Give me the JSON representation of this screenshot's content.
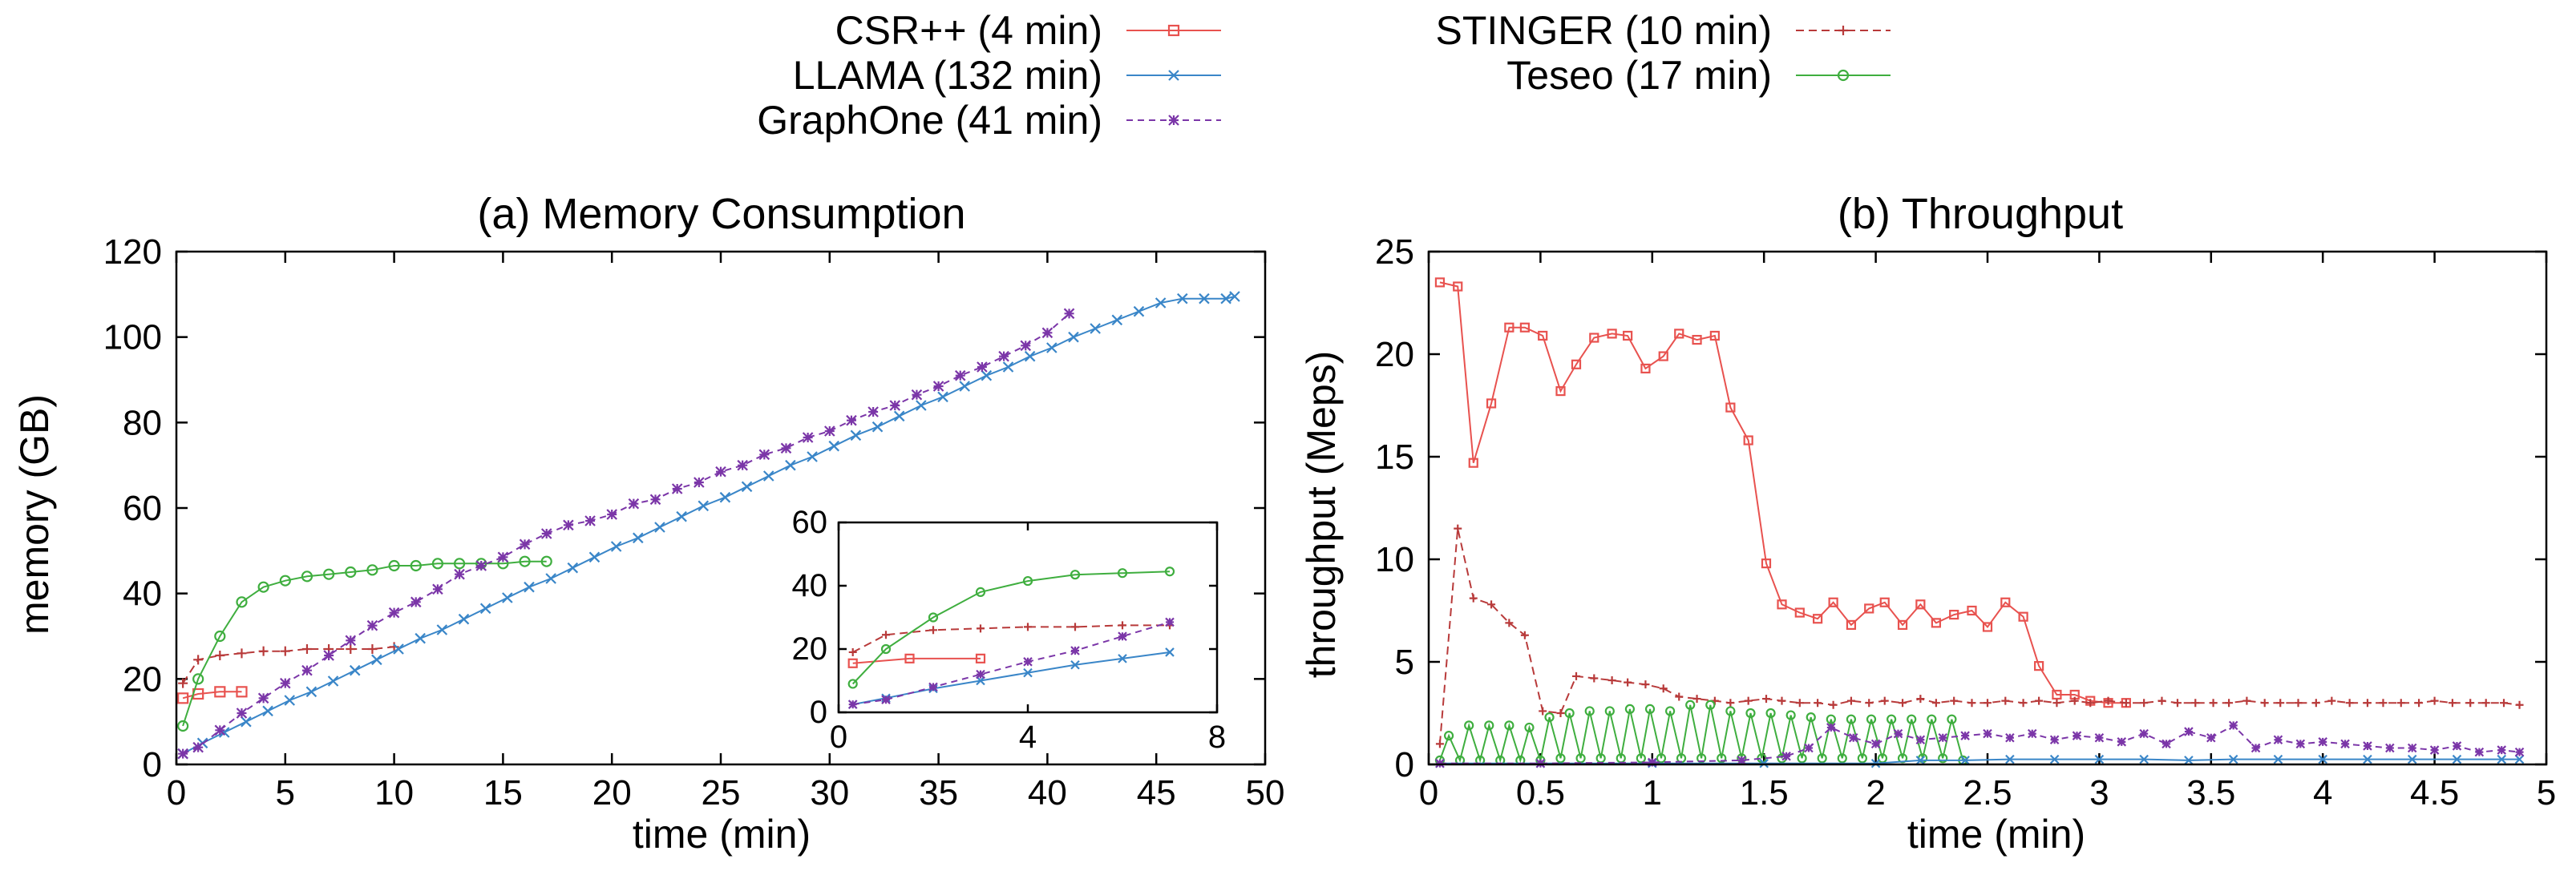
{
  "legend": [
    {
      "series": "csr",
      "label": "CSR++ (4 min)",
      "color": "#e8524f",
      "marker": "square",
      "dash": ""
    },
    {
      "series": "llama",
      "label": "LLAMA (132 min)",
      "color": "#3a86c8",
      "marker": "x",
      "dash": ""
    },
    {
      "series": "graphone",
      "label": "GraphOne (41 min)",
      "color": "#7b36a8",
      "marker": "star",
      "dash": "8,6"
    },
    {
      "series": "stinger",
      "label": "STINGER (10 min)",
      "color": "#b83a3a",
      "marker": "plus",
      "dash": "10,6"
    },
    {
      "series": "teseo",
      "label": "Teseo (17 min)",
      "color": "#3fae3f",
      "marker": "circle",
      "dash": ""
    }
  ],
  "chart_data": [
    {
      "id": "memory",
      "type": "line",
      "title": "(a) Memory Consumption",
      "xlabel": "time (min)",
      "ylabel": "memory (GB)",
      "xlim": [
        0,
        50
      ],
      "ylim": [
        0,
        120
      ],
      "xticks": [
        0,
        5,
        10,
        15,
        20,
        25,
        30,
        35,
        40,
        45,
        50
      ],
      "yticks": [
        0,
        20,
        40,
        60,
        80,
        100,
        120
      ],
      "series": [
        {
          "key": "csr",
          "x": [
            0.3,
            1.0,
            2.0,
            3.0
          ],
          "y": [
            15.5,
            16.5,
            17.0,
            17.0
          ]
        },
        {
          "key": "stinger",
          "x": [
            0.3,
            1.0,
            2.0,
            3.0,
            4.0,
            5.0,
            6.0,
            7.0,
            8.0,
            9.0,
            10.0
          ],
          "y": [
            19.0,
            24.5,
            25.5,
            26.0,
            26.5,
            26.5,
            27.0,
            27.0,
            27.0,
            27.0,
            27.5
          ]
        },
        {
          "key": "teseo",
          "x": [
            0.3,
            1.0,
            2.0,
            3.0,
            4.0,
            5.0,
            6.0,
            7.0,
            8.0,
            9.0,
            10.0,
            11.0,
            12.0,
            13.0,
            14.0,
            15.0,
            16.0,
            17.0
          ],
          "y": [
            9.0,
            20.0,
            30.0,
            38.0,
            41.5,
            43.0,
            44.0,
            44.5,
            45.0,
            45.5,
            46.5,
            46.5,
            47.0,
            47.0,
            47.0,
            47.0,
            47.5,
            47.5
          ]
        },
        {
          "key": "llama",
          "x": [
            0.3,
            1.2,
            2.2,
            3.2,
            4.2,
            5.2,
            6.2,
            7.2,
            8.2,
            9.2,
            10.2,
            11.2,
            12.2,
            13.2,
            14.2,
            15.2,
            16.2,
            17.2,
            18.2,
            19.2,
            20.2,
            21.2,
            22.2,
            23.2,
            24.2,
            25.2,
            26.2,
            27.2,
            28.2,
            29.2,
            30.2,
            31.2,
            32.2,
            33.2,
            34.2,
            35.2,
            36.2,
            37.2,
            38.2,
            39.2,
            40.2,
            41.2,
            42.2,
            43.2,
            44.2,
            45.2,
            46.2,
            47.2,
            48.2,
            48.6
          ],
          "y": [
            2.5,
            5.0,
            7.5,
            10.0,
            12.5,
            15.0,
            17.0,
            19.5,
            22.0,
            24.5,
            27.0,
            29.5,
            31.5,
            34.0,
            36.5,
            39.0,
            41.5,
            43.5,
            46.0,
            48.5,
            51.0,
            53.0,
            55.5,
            58.0,
            60.5,
            62.5,
            65.0,
            67.5,
            70.0,
            72.0,
            74.5,
            77.0,
            79.0,
            81.5,
            84.0,
            86.0,
            88.5,
            91.0,
            93.0,
            95.5,
            97.5,
            100.0,
            102.0,
            104.0,
            106.0,
            108.0,
            109.0,
            109.0,
            109.0,
            109.5
          ]
        },
        {
          "key": "graphone",
          "x": [
            0.3,
            1.0,
            2.0,
            3.0,
            4.0,
            5.0,
            6.0,
            7.0,
            8.0,
            9.0,
            10.0,
            11.0,
            12.0,
            13.0,
            14.0,
            15.0,
            16.0,
            17.0,
            18.0,
            19.0,
            20.0,
            21.0,
            22.0,
            23.0,
            24.0,
            25.0,
            26.0,
            27.0,
            28.0,
            29.0,
            30.0,
            31.0,
            32.0,
            33.0,
            34.0,
            35.0,
            36.0,
            37.0,
            38.0,
            39.0,
            40.0,
            41.0
          ],
          "y": [
            2.5,
            4.0,
            8.0,
            12.0,
            15.5,
            19.0,
            22.0,
            25.5,
            29.0,
            32.5,
            35.5,
            38.0,
            41.0,
            44.5,
            46.5,
            48.5,
            51.5,
            54.0,
            56.0,
            57.0,
            58.5,
            61.0,
            62.0,
            64.5,
            66.0,
            68.5,
            70.0,
            72.5,
            74.0,
            76.5,
            78.0,
            80.5,
            82.5,
            84.0,
            86.5,
            88.5,
            91.0,
            93.0,
            95.5,
            98.0,
            101.0,
            105.5
          ]
        }
      ]
    },
    {
      "id": "memory-inset",
      "type": "line",
      "xlim": [
        0,
        8
      ],
      "ylim": [
        0,
        60
      ],
      "xticks": [
        0,
        4,
        8
      ],
      "yticks": [
        0,
        20,
        40,
        60
      ],
      "series": [
        {
          "key": "csr",
          "x": [
            0.3,
            1.5,
            3.0
          ],
          "y": [
            15.5,
            17.0,
            17.0
          ]
        },
        {
          "key": "stinger",
          "x": [
            0.3,
            1.0,
            2.0,
            3.0,
            4.0,
            5.0,
            6.0,
            7.0
          ],
          "y": [
            19.0,
            24.5,
            26.0,
            26.5,
            27.0,
            27.0,
            27.5,
            27.5
          ]
        },
        {
          "key": "teseo",
          "x": [
            0.3,
            1.0,
            2.0,
            3.0,
            4.0,
            5.0,
            6.0,
            7.0
          ],
          "y": [
            9.0,
            20.0,
            30.0,
            38.0,
            41.5,
            43.5,
            44.0,
            44.5
          ]
        },
        {
          "key": "llama",
          "x": [
            0.3,
            1.0,
            2.0,
            3.0,
            4.0,
            5.0,
            6.0,
            7.0
          ],
          "y": [
            2.5,
            4.5,
            7.5,
            10.0,
            12.5,
            15.0,
            17.0,
            19.0
          ]
        },
        {
          "key": "graphone",
          "x": [
            0.3,
            1.0,
            2.0,
            3.0,
            4.0,
            5.0,
            6.0,
            7.0
          ],
          "y": [
            2.5,
            4.0,
            8.0,
            12.0,
            16.0,
            19.5,
            24.0,
            28.5
          ]
        }
      ]
    },
    {
      "id": "throughput",
      "type": "line",
      "title": "(b) Throughput",
      "xlabel": "time (min)",
      "ylabel": "throughput (Meps)",
      "xlim": [
        0,
        5
      ],
      "ylim": [
        0,
        25
      ],
      "xticks": [
        0,
        0.5,
        1,
        1.5,
        2,
        2.5,
        3,
        3.5,
        4,
        4.5,
        5
      ],
      "yticks": [
        0,
        5,
        10,
        15,
        20,
        25
      ],
      "series": [
        {
          "key": "csr",
          "x": [
            0.05,
            0.13,
            0.2,
            0.28,
            0.36,
            0.43,
            0.51,
            0.59,
            0.66,
            0.74,
            0.82,
            0.89,
            0.97,
            1.05,
            1.12,
            1.2,
            1.28,
            1.35,
            1.43,
            1.51,
            1.58,
            1.66,
            1.74,
            1.81,
            1.89,
            1.97,
            2.04,
            2.12,
            2.2,
            2.27,
            2.35,
            2.43,
            2.5,
            2.58,
            2.66,
            2.73,
            2.81,
            2.89,
            2.96,
            3.04,
            3.12
          ],
          "y": [
            23.5,
            23.3,
            14.7,
            17.6,
            21.3,
            21.3,
            20.9,
            18.2,
            19.5,
            20.8,
            21.0,
            20.9,
            19.3,
            19.9,
            21.0,
            20.7,
            20.9,
            17.4,
            15.8,
            9.8,
            7.8,
            7.4,
            7.1,
            7.9,
            6.8,
            7.6,
            7.9,
            6.8,
            7.8,
            6.9,
            7.3,
            7.5,
            6.7,
            7.9,
            7.2,
            4.8,
            3.4,
            3.4,
            3.1,
            3.0,
            3.0
          ]
        },
        {
          "key": "stinger",
          "x": [
            0.05,
            0.13,
            0.2,
            0.28,
            0.36,
            0.43,
            0.51,
            0.59,
            0.66,
            0.74,
            0.82,
            0.89,
            0.97,
            1.05,
            1.12,
            1.2,
            1.28,
            1.35,
            1.43,
            1.51,
            1.58,
            1.66,
            1.74,
            1.81,
            1.89,
            1.97,
            2.04,
            2.12,
            2.2,
            2.27,
            2.35,
            2.43,
            2.5,
            2.58,
            2.66,
            2.73,
            2.81,
            2.89,
            2.96,
            3.04,
            3.12,
            3.2,
            3.28,
            3.35,
            3.43,
            3.51,
            3.58,
            3.66,
            3.74,
            3.81,
            3.89,
            3.97,
            4.04,
            4.12,
            4.2,
            4.27,
            4.35,
            4.43,
            4.5,
            4.58,
            4.66,
            4.73,
            4.81,
            4.88
          ],
          "y": [
            1.0,
            11.5,
            8.1,
            7.8,
            6.9,
            6.3,
            2.6,
            2.5,
            4.3,
            4.2,
            4.1,
            4.0,
            3.9,
            3.7,
            3.3,
            3.2,
            3.1,
            3.0,
            3.1,
            3.2,
            3.1,
            3.0,
            3.0,
            2.9,
            3.1,
            3.0,
            3.1,
            3.0,
            3.2,
            3.0,
            3.1,
            3.0,
            3.0,
            3.1,
            3.0,
            3.1,
            3.0,
            3.1,
            3.0,
            3.1,
            3.0,
            3.0,
            3.1,
            3.0,
            3.0,
            3.0,
            3.0,
            3.1,
            3.0,
            3.0,
            3.0,
            3.0,
            3.1,
            3.0,
            3.0,
            3.0,
            3.0,
            3.0,
            3.1,
            3.0,
            3.0,
            3.0,
            3.0,
            2.9
          ]
        },
        {
          "key": "teseo",
          "x": [
            0.05,
            0.09,
            0.14,
            0.18,
            0.23,
            0.27,
            0.32,
            0.36,
            0.41,
            0.45,
            0.5,
            0.54,
            0.59,
            0.63,
            0.68,
            0.72,
            0.77,
            0.81,
            0.86,
            0.9,
            0.95,
            0.99,
            1.04,
            1.08,
            1.13,
            1.17,
            1.22,
            1.26,
            1.31,
            1.35,
            1.4,
            1.44,
            1.49,
            1.53,
            1.58,
            1.62,
            1.67,
            1.71,
            1.76,
            1.8,
            1.85,
            1.89,
            1.94,
            1.98,
            2.03,
            2.07,
            2.12,
            2.16,
            2.21,
            2.25,
            2.3,
            2.34,
            2.39
          ],
          "y": [
            0.2,
            1.4,
            0.2,
            1.9,
            0.2,
            1.9,
            0.2,
            1.9,
            0.2,
            1.8,
            0.2,
            2.3,
            0.3,
            2.5,
            0.3,
            2.6,
            0.3,
            2.6,
            0.3,
            2.7,
            0.3,
            2.7,
            0.3,
            2.6,
            0.3,
            2.9,
            0.3,
            2.9,
            0.3,
            2.6,
            0.3,
            2.5,
            0.3,
            2.5,
            0.3,
            2.4,
            0.3,
            2.3,
            0.3,
            2.2,
            0.3,
            2.2,
            0.3,
            2.2,
            0.3,
            2.2,
            0.3,
            2.2,
            0.3,
            2.2,
            0.3,
            2.2,
            0.2
          ]
        },
        {
          "key": "llama",
          "x": [
            0.05,
            0.5,
            1.0,
            1.5,
            2.0,
            2.2,
            2.4,
            2.6,
            2.8,
            3.0,
            3.2,
            3.4,
            3.6,
            3.8,
            4.0,
            4.2,
            4.4,
            4.6,
            4.8,
            4.88
          ],
          "y": [
            0.05,
            0.05,
            0.05,
            0.05,
            0.05,
            0.2,
            0.2,
            0.25,
            0.25,
            0.25,
            0.25,
            0.2,
            0.25,
            0.25,
            0.25,
            0.25,
            0.25,
            0.25,
            0.25,
            0.25
          ]
        },
        {
          "key": "graphone",
          "x": [
            0.05,
            0.5,
            1.0,
            1.4,
            1.6,
            1.7,
            1.8,
            1.9,
            2.0,
            2.1,
            2.2,
            2.3,
            2.4,
            2.5,
            2.6,
            2.7,
            2.8,
            2.9,
            3.0,
            3.1,
            3.2,
            3.3,
            3.4,
            3.5,
            3.6,
            3.7,
            3.8,
            3.9,
            4.0,
            4.1,
            4.2,
            4.3,
            4.4,
            4.5,
            4.6,
            4.7,
            4.8,
            4.88
          ],
          "y": [
            0.05,
            0.05,
            0.1,
            0.2,
            0.4,
            0.8,
            1.8,
            1.3,
            1.0,
            1.5,
            1.2,
            1.3,
            1.4,
            1.5,
            1.3,
            1.5,
            1.2,
            1.4,
            1.3,
            1.1,
            1.5,
            1.0,
            1.6,
            1.3,
            1.9,
            0.8,
            1.2,
            1.0,
            1.1,
            1.0,
            0.9,
            0.8,
            0.8,
            0.7,
            0.9,
            0.6,
            0.7,
            0.6
          ]
        }
      ]
    }
  ]
}
